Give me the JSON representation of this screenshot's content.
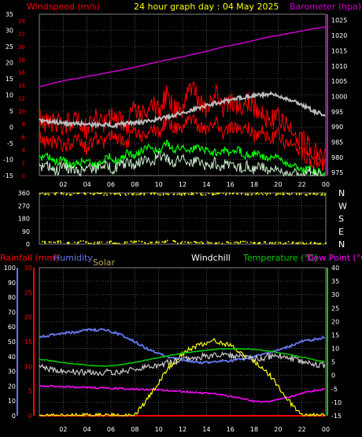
{
  "header": {
    "title": "24 hour graph day : 04 May 2025",
    "left_label": "Windspeed (m/s)",
    "right_label": "Barometer (hpa)"
  },
  "labels": {
    "rainfall": "Rainfall (mm)",
    "humidity": "Humidity",
    "solar": "Solar",
    "windchill": "Windchill",
    "temperature": "Temperature (°C)",
    "dewpoint": "Dew Point (°C)"
  },
  "colors": {
    "wind": "#ff0000",
    "gust": "#ff0000",
    "barometer": "#cc00cc",
    "grey_trace": "#bbbbbb",
    "wind_green": "#00ff00",
    "wind_light": "#cceecc",
    "direction": "#ffff00",
    "temperature": "#00cc00",
    "dewpoint": "#ff00ff",
    "humidity": "#6677ee",
    "windchill": "#cccccc",
    "solar": "#ffff00",
    "rainfall": "#ff0000",
    "grid": "#808080"
  },
  "chart_data": [
    {
      "type": "line",
      "name": "wind-barometer",
      "x_ticks": [
        "02",
        "04",
        "06",
        "08",
        "10",
        "12",
        "14",
        "16",
        "18",
        "20",
        "22",
        "00"
      ],
      "left_axis": {
        "ticks": [
          "-15",
          "-10",
          "-5",
          "0",
          "5",
          "10",
          "15",
          "20",
          "25",
          "30",
          "35"
        ],
        "range": [
          -15,
          35
        ]
      },
      "left_inner_axis": {
        "ticks": [
          "0",
          "2",
          "4",
          "6",
          "8",
          "10",
          "12",
          "14",
          "16",
          "18",
          "20",
          "22",
          "24"
        ],
        "range": [
          0,
          24
        ]
      },
      "right_axis": {
        "ticks": [
          "975",
          "980",
          "985",
          "990",
          "995",
          "1000",
          "1005",
          "1010",
          "1015",
          "1020",
          "1025"
        ],
        "range": [
          974,
          1027
        ]
      },
      "series": [
        {
          "key": "barometer",
          "axis": "right",
          "values": [
            1003.2,
            1003.8,
            1004.5,
            1005.1,
            1005.6,
            1006.0,
            1006.6,
            1007.0,
            1007.5,
            1008.0,
            1008.5,
            1009.0,
            1009.6,
            1010.2,
            1010.8,
            1011.4,
            1012.0,
            1012.5,
            1013.0,
            1013.6,
            1014.2,
            1014.8,
            1015.5,
            1016.2,
            1016.7,
            1017.2,
            1017.8,
            1018.4,
            1019.0,
            1019.6,
            1020.0,
            1020.5,
            1021.0,
            1021.5,
            1022.0,
            1022.4,
            1022.8
          ]
        },
        {
          "key": "grey_trace",
          "axis": "left",
          "values": [
            2.0,
            1.6,
            1.5,
            1.2,
            1.0,
            1.2,
            1.0,
            0.8,
            1.0,
            0.6,
            0.8,
            1.2,
            1.4,
            1.6,
            2.0,
            2.5,
            3.0,
            3.8,
            4.5,
            5.2,
            6.0,
            6.8,
            7.4,
            8.0,
            8.4,
            9.0,
            9.4,
            9.8,
            10.0,
            10.2,
            9.6,
            9.0,
            8.0,
            7.0,
            5.6,
            4.4,
            3.8
          ]
        },
        {
          "key": "wind",
          "axis": "left",
          "values": [
            -3,
            -5,
            -4,
            -6,
            -5,
            -4,
            -7,
            -3,
            -5,
            -2,
            -4,
            -5,
            -1,
            -3,
            0,
            -2,
            2,
            0,
            -1,
            3,
            0,
            -1,
            2,
            -2,
            0,
            -1,
            1,
            -3,
            -1,
            -4,
            -2,
            -6,
            -5,
            -8,
            -10,
            -11,
            -12
          ]
        },
        {
          "key": "gust",
          "axis": "left",
          "values": [
            3,
            1,
            2,
            0,
            2,
            1,
            -1,
            3,
            1,
            4,
            2,
            0,
            6,
            4,
            8,
            5,
            10,
            6,
            4,
            13,
            8,
            5,
            11,
            6,
            8,
            5,
            9,
            6,
            4,
            2,
            3,
            0,
            -2,
            -4,
            -6,
            -8,
            -10
          ]
        },
        {
          "key": "wind_green",
          "axis": "left",
          "values": [
            -10,
            -9,
            -11,
            -10,
            -12,
            -11,
            -10,
            -12,
            -10,
            -9,
            -11,
            -8,
            -9,
            -7,
            -6,
            -8,
            -5,
            -7,
            -6,
            -7,
            -6,
            -7,
            -8,
            -7,
            -8,
            -7,
            -9,
            -8,
            -9,
            -10,
            -9,
            -11,
            -12,
            -13,
            -13,
            -14,
            -14
          ]
        },
        {
          "key": "wind_light",
          "axis": "left",
          "values": [
            -13,
            -12,
            -14,
            -12,
            -13,
            -14,
            -12,
            -13,
            -11,
            -13,
            -12,
            -11,
            -12,
            -10,
            -11,
            -9,
            -10,
            -11,
            -9,
            -11,
            -10,
            -12,
            -11,
            -12,
            -11,
            -13,
            -12,
            -13,
            -12,
            -14,
            -13,
            -14,
            -14,
            -15,
            -14,
            -15,
            -15
          ]
        }
      ]
    },
    {
      "type": "scatter",
      "name": "wind-direction",
      "left_axis": {
        "ticks": [
          "0",
          "90",
          "180",
          "270",
          "360"
        ],
        "range": [
          0,
          360
        ]
      },
      "right_axis": {
        "ticks": [
          "N",
          "W",
          "S",
          "E",
          "N"
        ]
      },
      "x_ticks": [
        "02",
        "04",
        "06",
        "08",
        "10",
        "12",
        "14",
        "16",
        "18",
        "20",
        "22",
        "00"
      ],
      "band_top_values": [
        352,
        350,
        355,
        348,
        351,
        353,
        349,
        352,
        350,
        354,
        347,
        351,
        352,
        349,
        353,
        350,
        352,
        348,
        351,
        354,
        350,
        349,
        352,
        351,
        353,
        350,
        348,
        352,
        351,
        349,
        353,
        350,
        352,
        348,
        351,
        350
      ],
      "band_bottom_values": [
        12,
        8,
        15,
        5,
        10,
        18,
        6,
        9,
        14,
        7,
        11,
        16,
        20,
        8,
        12,
        15,
        22,
        9,
        10,
        14,
        8,
        13,
        5,
        11,
        9,
        12,
        7,
        6,
        10,
        8,
        4,
        9,
        6,
        5,
        7,
        3
      ]
    },
    {
      "type": "line",
      "name": "temperature-humidity",
      "x_ticks": [
        "02",
        "04",
        "06",
        "08",
        "10",
        "12",
        "14",
        "16",
        "18",
        "20",
        "22",
        "00"
      ],
      "left_outer_axis": {
        "ticks": [
          "0",
          "10",
          "20",
          "30",
          "40",
          "50",
          "60",
          "70",
          "80",
          "90",
          "100"
        ],
        "range": [
          0,
          100
        ]
      },
      "left_inner_axis": {
        "ticks": [
          "0",
          "5",
          "10",
          "15",
          "20",
          "25",
          "30"
        ],
        "range": [
          0,
          30
        ]
      },
      "right_axis": {
        "ticks": [
          "-15",
          "-10",
          "-5",
          "0",
          "5",
          "10",
          "15",
          "20",
          "25",
          "30",
          "35",
          "40"
        ],
        "range": [
          -15,
          40
        ]
      },
      "series": [
        {
          "key": "humidity",
          "axis": "outer",
          "values": [
            53,
            54,
            55,
            56,
            56,
            57,
            58,
            58,
            58,
            57,
            55,
            53,
            50,
            47,
            44,
            42,
            40,
            39,
            38,
            37,
            36,
            36,
            36,
            37,
            37,
            38,
            38,
            40,
            41,
            43,
            44,
            46,
            48,
            50,
            51,
            52,
            53
          ]
        },
        {
          "key": "temperature",
          "axis": "right",
          "values": [
            6.0,
            5.6,
            5.2,
            4.8,
            4.4,
            4.1,
            3.8,
            3.6,
            3.5,
            3.6,
            3.9,
            4.3,
            4.8,
            5.4,
            6.0,
            6.6,
            7.2,
            7.7,
            8.2,
            8.6,
            9.0,
            9.3,
            9.6,
            9.8,
            9.9,
            9.9,
            9.8,
            9.6,
            9.3,
            9.0,
            8.5,
            8.0,
            7.4,
            6.8,
            6.2,
            5.5,
            4.9
          ]
        },
        {
          "key": "windchill",
          "axis": "right",
          "values": [
            3.0,
            2.6,
            2.2,
            1.8,
            1.6,
            1.2,
            1.0,
            0.8,
            1.0,
            1.4,
            1.0,
            1.8,
            2.2,
            2.6,
            3.4,
            3.8,
            4.6,
            5.2,
            5.8,
            6.2,
            6.8,
            7.2,
            7.4,
            7.6,
            7.4,
            7.0,
            6.6,
            6.4,
            6.6,
            7.0,
            7.4,
            7.0,
            6.2,
            5.4,
            4.6,
            4.0,
            3.6
          ]
        },
        {
          "key": "dewpoint",
          "axis": "right",
          "values": [
            -4.0,
            -4.0,
            -4.1,
            -4.2,
            -4.3,
            -4.4,
            -4.5,
            -4.6,
            -4.7,
            -4.8,
            -4.9,
            -5.0,
            -5.1,
            -5.2,
            -5.3,
            -5.4,
            -5.6,
            -5.8,
            -6.0,
            -6.2,
            -6.4,
            -6.6,
            -6.9,
            -7.3,
            -7.8,
            -8.4,
            -9.0,
            -9.6,
            -10.0,
            -9.6,
            -9.0,
            -8.4,
            -7.6,
            -6.8,
            -6.0,
            -5.5,
            -5.0
          ]
        },
        {
          "key": "solar",
          "axis": "right",
          "values": [
            -15,
            -15,
            -15,
            -15,
            -15,
            -15,
            -15,
            -15,
            -15,
            -15,
            -15,
            -15,
            -15,
            -11,
            -7,
            -3,
            2,
            5,
            8,
            10,
            11,
            12,
            13,
            12,
            11,
            9,
            7,
            5,
            3,
            0,
            -4,
            -8,
            -12,
            -15,
            -15,
            -15,
            -15
          ]
        },
        {
          "key": "rainfall",
          "axis": "inner",
          "values": [
            0,
            0,
            0,
            0,
            0,
            0,
            0,
            0,
            0,
            0,
            0,
            0,
            0,
            0,
            0,
            0,
            0,
            0,
            0,
            0,
            0,
            0,
            0,
            0,
            0,
            0,
            0,
            0,
            0,
            0,
            0,
            0,
            0,
            0,
            0,
            0,
            0
          ]
        }
      ]
    }
  ]
}
